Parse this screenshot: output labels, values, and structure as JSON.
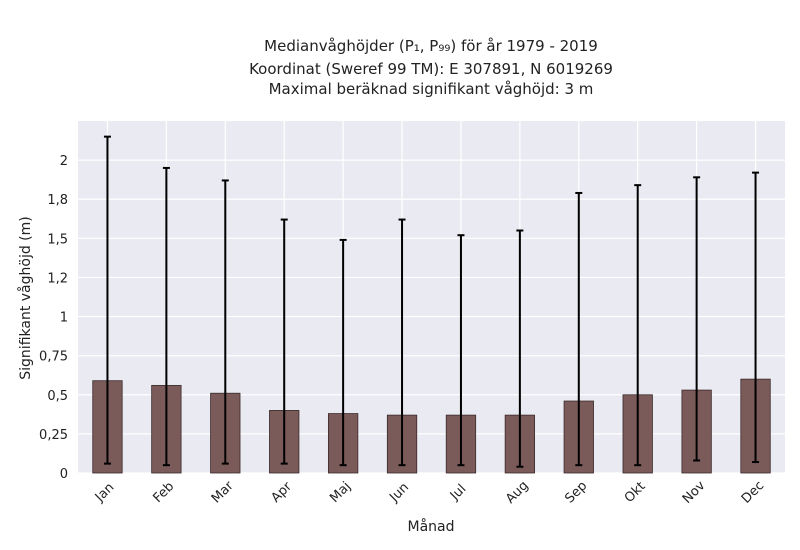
{
  "chart_data": {
    "type": "bar",
    "title_lines": [
      "Medianvåghöjder (P₁, P₉₉) för år 1979 - 2019",
      "Koordinat (Sweref 99 TM): E 307891, N 6019269",
      "Maximal beräknad signifikant våghöjd: 3 m"
    ],
    "xlabel": "Månad",
    "ylabel": "Signifikant våghöjd (m)",
    "categories": [
      "Jan",
      "Feb",
      "Mar",
      "Apr",
      "Maj",
      "Jun",
      "Jul",
      "Aug",
      "Sep",
      "Okt",
      "Nov",
      "Dec"
    ],
    "values": [
      0.59,
      0.56,
      0.51,
      0.4,
      0.38,
      0.37,
      0.37,
      0.37,
      0.46,
      0.5,
      0.53,
      0.6
    ],
    "error_low": [
      0.06,
      0.05,
      0.06,
      0.06,
      0.05,
      0.05,
      0.05,
      0.04,
      0.05,
      0.05,
      0.08,
      0.07
    ],
    "error_high": [
      2.15,
      1.95,
      1.87,
      1.62,
      1.49,
      1.62,
      1.52,
      1.55,
      1.79,
      1.84,
      1.89,
      1.92
    ],
    "yticks": [
      0,
      0.25,
      0.5,
      0.75,
      1,
      1.25,
      1.5,
      1.75,
      2
    ],
    "ytick_labels": [
      "0",
      "0,25",
      "0,5",
      "0,75",
      "1",
      "1,2",
      "1,5",
      "1,8",
      "2"
    ],
    "ylim": [
      0,
      2.25
    ],
    "grid": true,
    "colors": {
      "bar": "#7b5a5a",
      "bar_edge": "#3a2a2a",
      "errorbar": "#000000",
      "plot_bg": "#eaeaf2",
      "grid": "#ffffff"
    }
  }
}
